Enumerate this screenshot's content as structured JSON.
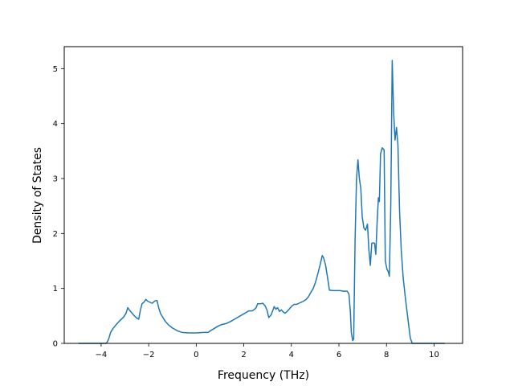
{
  "chart_data": {
    "type": "line",
    "title": "",
    "xlabel": "Frequency (THz)",
    "ylabel": "Density of States",
    "xlim": [
      -5.55,
      11.2
    ],
    "ylim": [
      0,
      5.4
    ],
    "xticks": [
      -4,
      -2,
      0,
      2,
      4,
      6,
      8,
      10
    ],
    "xtick_labels": [
      "−4",
      "−2",
      "0",
      "2",
      "4",
      "6",
      "8",
      "10"
    ],
    "yticks": [
      0,
      1,
      2,
      3,
      4,
      5
    ],
    "ytick_labels": [
      "0",
      "1",
      "2",
      "3",
      "4",
      "5"
    ],
    "grid": false,
    "legend": "none",
    "series_color": "#1f77b4",
    "series": [
      {
        "points": [
          [
            -4.95,
            0.0
          ],
          [
            -3.8,
            0.0
          ],
          [
            -3.75,
            0.02
          ],
          [
            -3.68,
            0.08
          ],
          [
            -3.6,
            0.2
          ],
          [
            -3.5,
            0.27
          ],
          [
            -3.35,
            0.35
          ],
          [
            -3.2,
            0.42
          ],
          [
            -3.05,
            0.48
          ],
          [
            -2.95,
            0.55
          ],
          [
            -2.88,
            0.65
          ],
          [
            -2.8,
            0.6
          ],
          [
            -2.7,
            0.55
          ],
          [
            -2.6,
            0.5
          ],
          [
            -2.5,
            0.46
          ],
          [
            -2.42,
            0.44
          ],
          [
            -2.35,
            0.6
          ],
          [
            -2.28,
            0.72
          ],
          [
            -2.2,
            0.75
          ],
          [
            -2.12,
            0.8
          ],
          [
            -2.05,
            0.77
          ],
          [
            -1.95,
            0.75
          ],
          [
            -1.85,
            0.73
          ],
          [
            -1.75,
            0.77
          ],
          [
            -1.65,
            0.78
          ],
          [
            -1.58,
            0.65
          ],
          [
            -1.5,
            0.54
          ],
          [
            -1.4,
            0.47
          ],
          [
            -1.3,
            0.4
          ],
          [
            -1.15,
            0.33
          ],
          [
            -1.0,
            0.28
          ],
          [
            -0.8,
            0.23
          ],
          [
            -0.6,
            0.2
          ],
          [
            -0.3,
            0.19
          ],
          [
            0.0,
            0.19
          ],
          [
            0.3,
            0.2
          ],
          [
            0.5,
            0.2
          ],
          [
            0.6,
            0.23
          ],
          [
            0.75,
            0.27
          ],
          [
            0.9,
            0.31
          ],
          [
            1.05,
            0.34
          ],
          [
            1.25,
            0.36
          ],
          [
            1.45,
            0.4
          ],
          [
            1.65,
            0.45
          ],
          [
            1.85,
            0.5
          ],
          [
            2.05,
            0.55
          ],
          [
            2.2,
            0.59
          ],
          [
            2.35,
            0.59
          ],
          [
            2.45,
            0.62
          ],
          [
            2.52,
            0.65
          ],
          [
            2.58,
            0.72
          ],
          [
            2.68,
            0.72
          ],
          [
            2.8,
            0.73
          ],
          [
            2.9,
            0.68
          ],
          [
            2.98,
            0.6
          ],
          [
            3.05,
            0.47
          ],
          [
            3.15,
            0.52
          ],
          [
            3.22,
            0.6
          ],
          [
            3.28,
            0.67
          ],
          [
            3.35,
            0.62
          ],
          [
            3.42,
            0.65
          ],
          [
            3.5,
            0.58
          ],
          [
            3.58,
            0.61
          ],
          [
            3.66,
            0.57
          ],
          [
            3.74,
            0.55
          ],
          [
            3.82,
            0.58
          ],
          [
            3.92,
            0.63
          ],
          [
            4.02,
            0.68
          ],
          [
            4.12,
            0.71
          ],
          [
            4.22,
            0.71
          ],
          [
            4.32,
            0.73
          ],
          [
            4.42,
            0.75
          ],
          [
            4.52,
            0.77
          ],
          [
            4.62,
            0.8
          ],
          [
            4.72,
            0.85
          ],
          [
            4.82,
            0.93
          ],
          [
            4.92,
            1.0
          ],
          [
            5.02,
            1.12
          ],
          [
            5.12,
            1.28
          ],
          [
            5.22,
            1.45
          ],
          [
            5.3,
            1.6
          ],
          [
            5.36,
            1.55
          ],
          [
            5.44,
            1.42
          ],
          [
            5.52,
            1.2
          ],
          [
            5.6,
            0.97
          ],
          [
            5.75,
            0.96
          ],
          [
            5.9,
            0.96
          ],
          [
            6.05,
            0.96
          ],
          [
            6.2,
            0.95
          ],
          [
            6.35,
            0.95
          ],
          [
            6.42,
            0.9
          ],
          [
            6.48,
            0.58
          ],
          [
            6.52,
            0.2
          ],
          [
            6.58,
            0.05
          ],
          [
            6.62,
            0.08
          ],
          [
            6.68,
            1.9
          ],
          [
            6.74,
            3.0
          ],
          [
            6.8,
            3.34
          ],
          [
            6.86,
            3.0
          ],
          [
            6.92,
            2.82
          ],
          [
            6.98,
            2.3
          ],
          [
            7.05,
            2.1
          ],
          [
            7.12,
            2.06
          ],
          [
            7.2,
            2.17
          ],
          [
            7.26,
            1.7
          ],
          [
            7.32,
            1.42
          ],
          [
            7.38,
            1.82
          ],
          [
            7.44,
            1.83
          ],
          [
            7.5,
            1.82
          ],
          [
            7.55,
            1.62
          ],
          [
            7.6,
            2.15
          ],
          [
            7.66,
            2.65
          ],
          [
            7.7,
            2.58
          ],
          [
            7.75,
            3.45
          ],
          [
            7.82,
            3.56
          ],
          [
            7.9,
            3.52
          ],
          [
            7.95,
            1.5
          ],
          [
            8.02,
            1.35
          ],
          [
            8.08,
            1.3
          ],
          [
            8.12,
            1.22
          ],
          [
            8.18,
            2.5
          ],
          [
            8.24,
            5.15
          ],
          [
            8.3,
            4.2
          ],
          [
            8.36,
            3.7
          ],
          [
            8.42,
            3.93
          ],
          [
            8.48,
            3.62
          ],
          [
            8.55,
            2.4
          ],
          [
            8.62,
            1.7
          ],
          [
            8.7,
            1.2
          ],
          [
            8.8,
            0.8
          ],
          [
            8.9,
            0.45
          ],
          [
            9.0,
            0.1
          ],
          [
            9.08,
            0.0
          ],
          [
            10.45,
            0.0
          ]
        ]
      }
    ]
  }
}
